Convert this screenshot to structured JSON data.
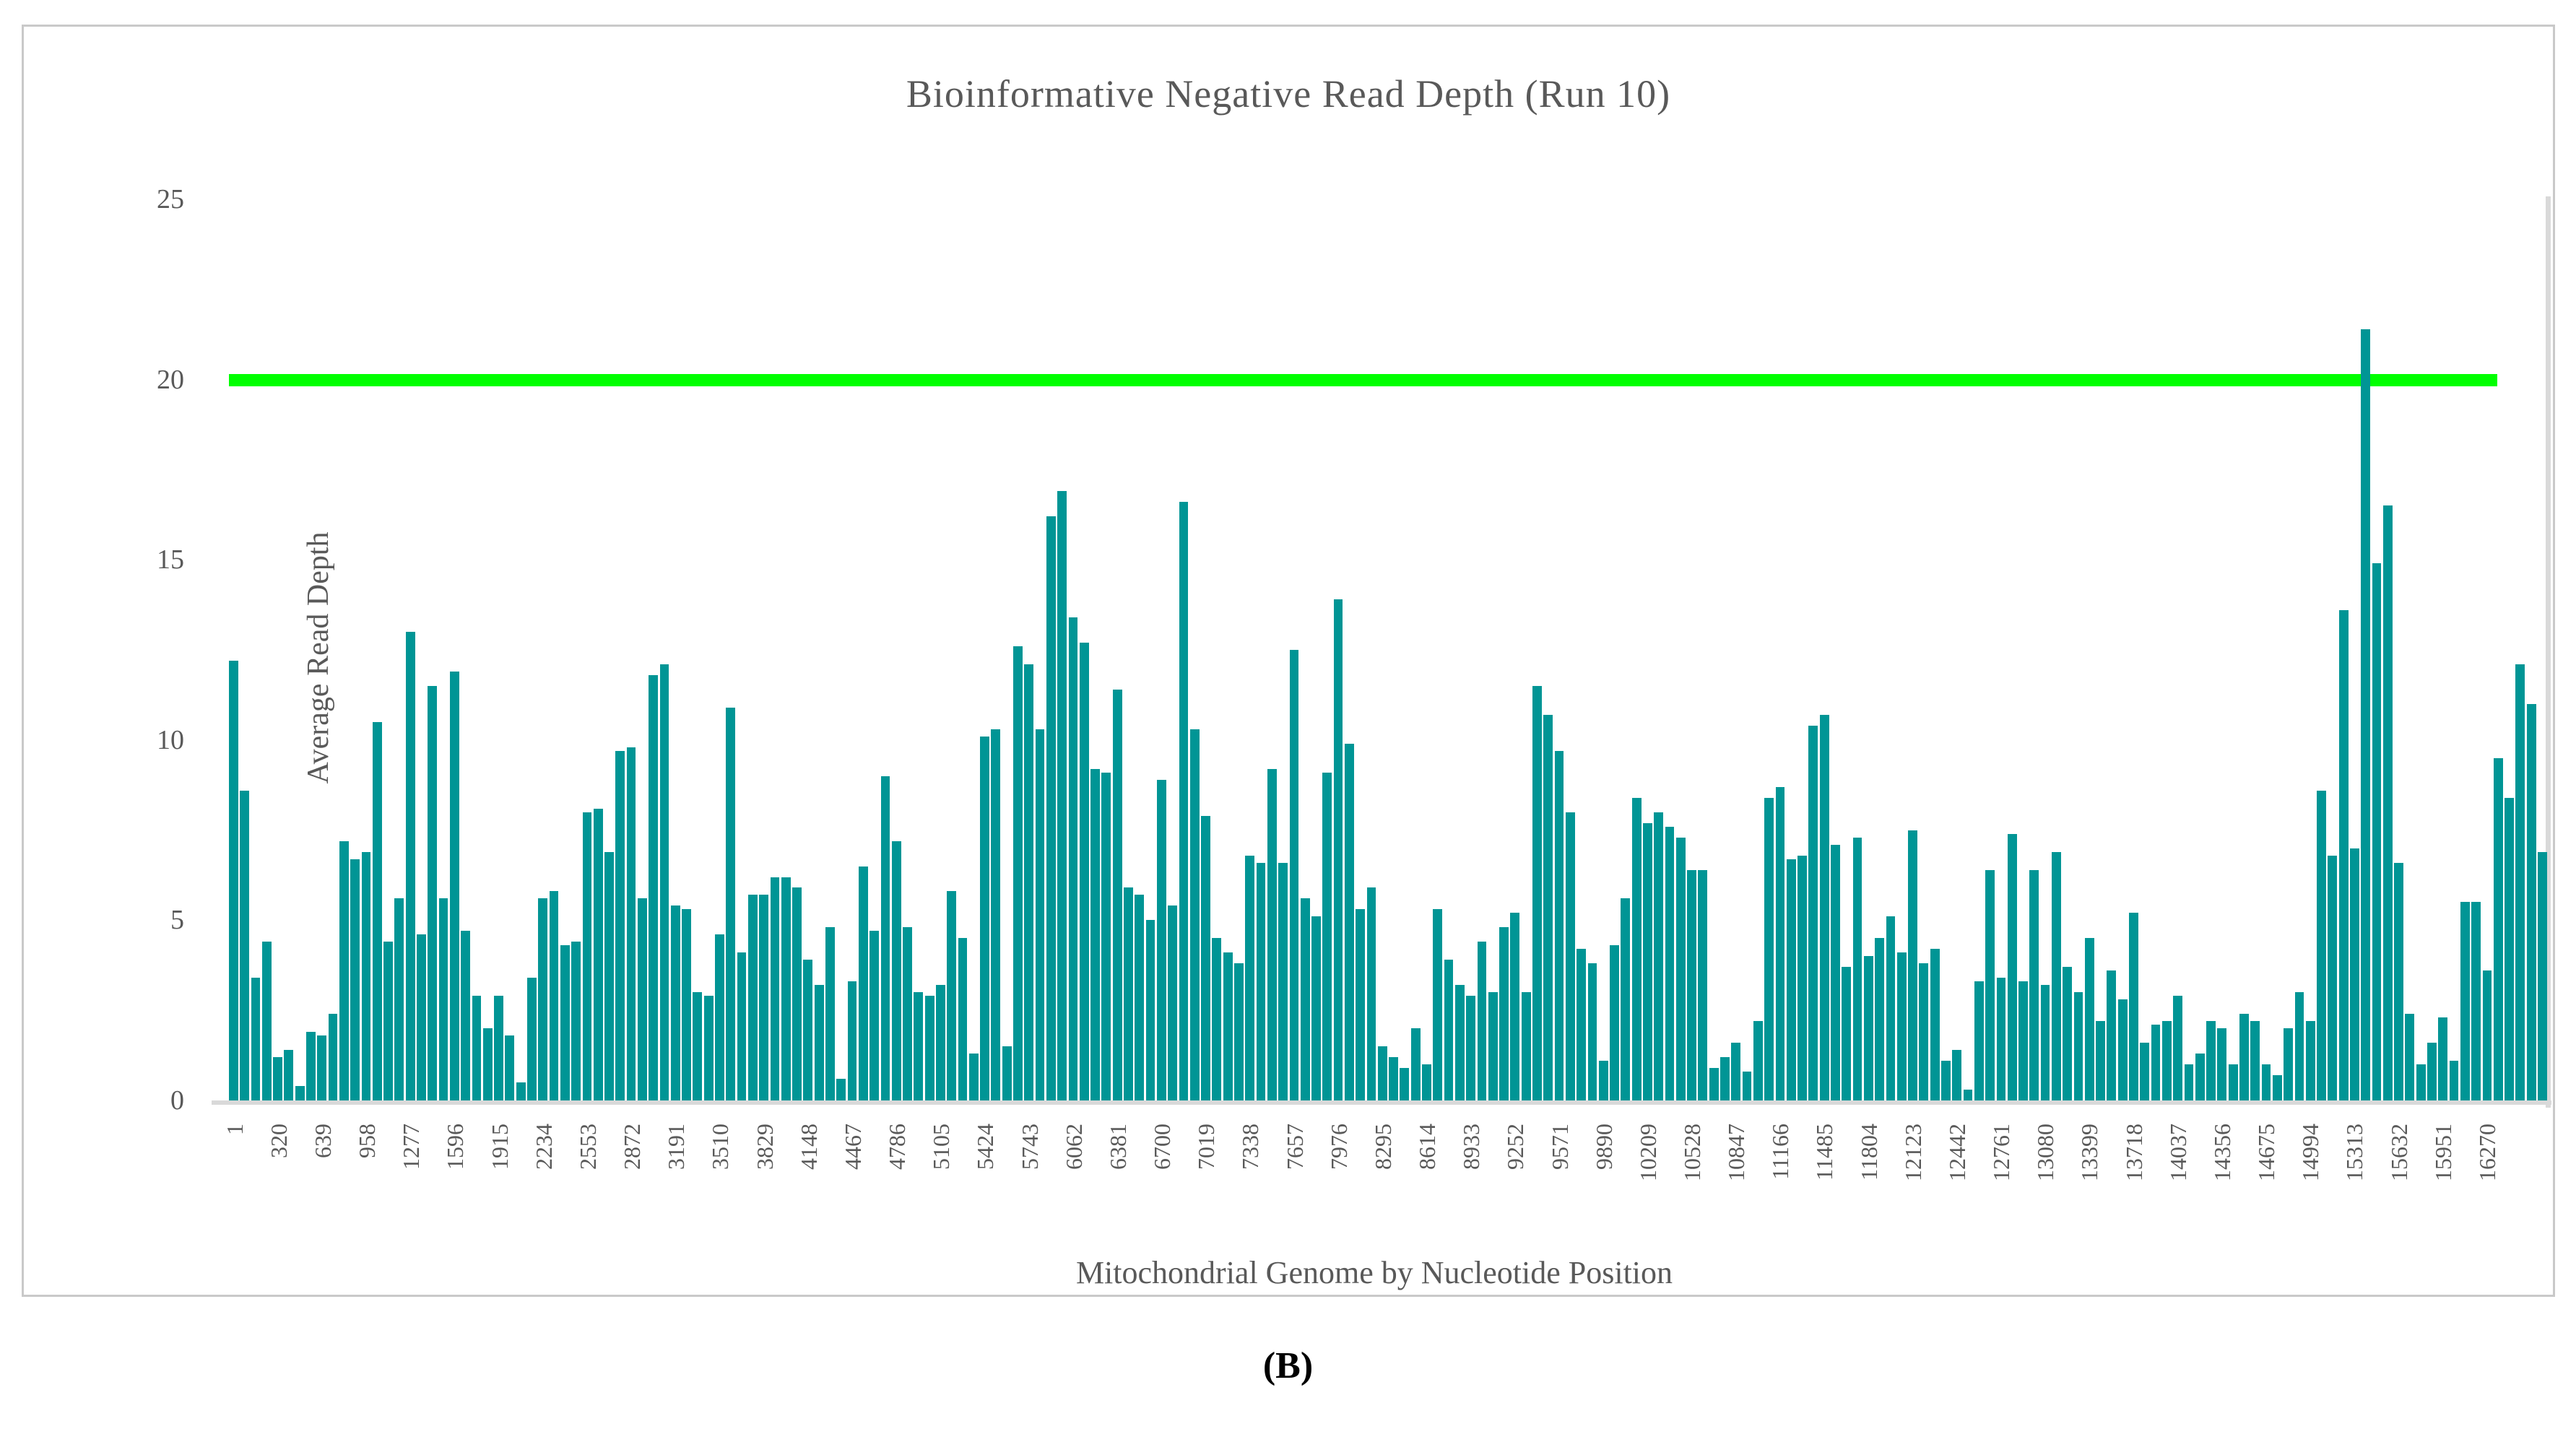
{
  "figure": {
    "panel_label": "(B)"
  },
  "chart_data": {
    "type": "bar",
    "title": "Bioinformative Negative Read Depth (Run 10)",
    "xlabel": "Mitochondrial Genome by Nucleotide Position",
    "ylabel": "Average Read Depth",
    "ylim": [
      0,
      25
    ],
    "y_ticks": [
      0,
      5,
      10,
      15,
      20,
      25
    ],
    "grid": "off",
    "legend": "none",
    "bar_color": "#009595",
    "axis_text_color": "#595959",
    "threshold_line": {
      "value": 20,
      "color": "#00FF00"
    },
    "x_tick_every_n_bars": 4,
    "x_tick_labels": [
      "1",
      "320",
      "639",
      "958",
      "1277",
      "1596",
      "1915",
      "2234",
      "2553",
      "2872",
      "3191",
      "3510",
      "3829",
      "4148",
      "4467",
      "4786",
      "5105",
      "5424",
      "5743",
      "6062",
      "6381",
      "6700",
      "7019",
      "7338",
      "7657",
      "7976",
      "8295",
      "8614",
      "8933",
      "9252",
      "9571",
      "9890",
      "10209",
      "10528",
      "10847",
      "11166",
      "11485",
      "11804",
      "12123",
      "12442",
      "12761",
      "13080",
      "13399",
      "13718",
      "14037",
      "14356",
      "14675",
      "14994",
      "15313",
      "15632",
      "15951",
      "16270"
    ],
    "values": [
      12.2,
      8.6,
      3.4,
      4.4,
      1.2,
      1.4,
      0.4,
      1.9,
      1.8,
      2.4,
      7.2,
      6.7,
      6.9,
      10.5,
      4.4,
      5.6,
      13.0,
      4.6,
      11.5,
      5.6,
      11.9,
      4.7,
      2.9,
      2.0,
      2.9,
      1.8,
      0.5,
      3.4,
      5.6,
      5.8,
      4.3,
      4.4,
      8.0,
      8.1,
      6.9,
      9.7,
      9.8,
      5.6,
      11.8,
      12.1,
      5.4,
      5.3,
      3.0,
      2.9,
      4.6,
      10.9,
      4.1,
      5.7,
      5.7,
      6.2,
      6.2,
      5.9,
      3.9,
      3.2,
      4.8,
      0.6,
      3.3,
      6.5,
      4.7,
      9.0,
      7.2,
      4.8,
      3.0,
      2.9,
      3.2,
      5.8,
      4.5,
      1.3,
      10.1,
      10.3,
      1.5,
      12.6,
      12.1,
      10.3,
      16.2,
      16.9,
      13.4,
      12.7,
      9.2,
      9.1,
      11.4,
      5.9,
      5.7,
      5.0,
      8.9,
      5.4,
      16.6,
      10.3,
      7.9,
      4.5,
      4.1,
      3.8,
      6.8,
      6.6,
      9.2,
      6.6,
      12.5,
      5.6,
      5.1,
      9.1,
      13.9,
      9.9,
      5.3,
      5.9,
      1.5,
      1.2,
      0.9,
      2.0,
      1.0,
      5.3,
      3.9,
      3.2,
      2.9,
      4.4,
      3.0,
      4.8,
      5.2,
      3.0,
      11.5,
      10.7,
      9.7,
      8.0,
      4.2,
      3.8,
      1.1,
      4.3,
      5.6,
      8.4,
      7.7,
      8.0,
      7.6,
      7.3,
      6.4,
      6.4,
      0.9,
      1.2,
      1.6,
      0.8,
      2.2,
      8.4,
      8.7,
      6.7,
      6.8,
      10.4,
      10.7,
      7.1,
      3.7,
      7.3,
      4.0,
      4.5,
      5.1,
      4.1,
      7.5,
      3.8,
      4.2,
      1.1,
      1.4,
      0.3,
      3.3,
      6.4,
      3.4,
      7.4,
      3.3,
      6.4,
      3.2,
      6.9,
      3.7,
      3.0,
      4.5,
      2.2,
      3.6,
      2.8,
      5.2,
      1.6,
      2.1,
      2.2,
      2.9,
      1.0,
      1.3,
      2.2,
      2.0,
      1.0,
      2.4,
      2.2,
      1.0,
      0.7,
      2.0,
      3.0,
      2.2,
      8.6,
      6.8,
      13.6,
      7.0,
      21.4,
      14.9,
      16.5,
      6.6,
      2.4,
      1.0,
      1.6,
      2.3,
      1.1,
      5.5,
      5.5,
      3.6,
      9.5,
      8.4,
      12.1,
      11.0,
      6.9
    ]
  }
}
